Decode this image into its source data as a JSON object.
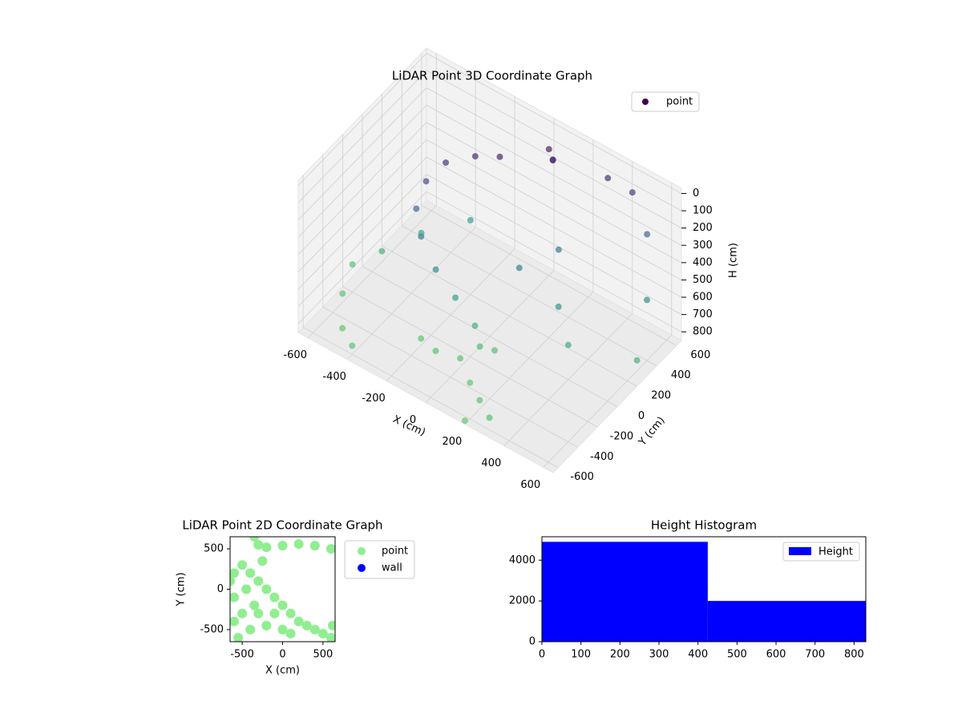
{
  "chart_data": [
    {
      "type": "scatter3d",
      "title": "LiDAR Point 3D Coordinate Graph",
      "xlabel": "X (cm)",
      "ylabel": "Y (cm)",
      "zlabel": "H (cm)",
      "xlim": [
        -650,
        650
      ],
      "ylim": [
        -650,
        650
      ],
      "zlim": [
        850,
        -30
      ],
      "xticks": [
        -600,
        -400,
        -200,
        0,
        200,
        400,
        600
      ],
      "yticks": [
        -600,
        -400,
        -200,
        0,
        200,
        400,
        600
      ],
      "zticks": [
        0,
        100,
        200,
        300,
        400,
        500,
        600,
        700,
        800
      ],
      "colormap": "viridis",
      "legend_loc": "upper right",
      "series": [
        {
          "name": "point",
          "color": "#440154",
          "x": [
            -100,
            -200,
            -300,
            -350,
            -350,
            -300,
            -200,
            -100,
            0,
            100,
            50,
            80,
            60,
            300,
            400,
            500,
            600,
            650,
            0,
            100,
            -100,
            200,
            300,
            -200,
            50,
            -600,
            -500,
            -650,
            -400,
            200,
            -550,
            -450,
            -300,
            200,
            300,
            400,
            100
          ],
          "y": [
            300,
            250,
            150,
            50,
            -50,
            -100,
            -150,
            -150,
            -150,
            -150,
            500,
            480,
            520,
            600,
            650,
            600,
            400,
            200,
            -300,
            -400,
            -350,
            -500,
            -600,
            -300,
            -200,
            -300,
            -500,
            -100,
            -600,
            -650,
            0,
            200,
            400,
            300,
            100,
            0,
            100
          ],
          "z": [
            50,
            80,
            120,
            200,
            300,
            400,
            500,
            600,
            700,
            780,
            30,
            60,
            100,
            100,
            150,
            300,
            500,
            700,
            800,
            820,
            790,
            800,
            780,
            810,
            760,
            800,
            820,
            780,
            800,
            830,
            700,
            650,
            600,
            400,
            550,
            650,
            450
          ]
        }
      ]
    },
    {
      "type": "scatter",
      "title": "LiDAR Point 2D Coordinate Graph",
      "xlabel": "X (cm)",
      "ylabel": "Y (cm)",
      "xlim": [
        -650,
        650
      ],
      "ylim": [
        -650,
        650
      ],
      "xticks": [
        -500,
        0,
        500
      ],
      "yticks": [
        -500,
        0,
        500
      ],
      "legend_loc": "outside right",
      "series": [
        {
          "name": "point",
          "color": "#90ee90",
          "x": [
            -350,
            -300,
            -200,
            0,
            200,
            400,
            600,
            -600,
            -650,
            -500,
            -400,
            -300,
            -200,
            -100,
            0,
            100,
            200,
            300,
            400,
            500,
            600,
            -600,
            -500,
            -600,
            -550,
            -400,
            -300,
            -200,
            0,
            -100,
            100,
            620,
            -450,
            -350,
            -250
          ],
          "y": [
            650,
            550,
            520,
            540,
            560,
            540,
            500,
            200,
            100,
            300,
            200,
            100,
            0,
            -100,
            -200,
            -300,
            -400,
            -450,
            -500,
            -550,
            -600,
            -100,
            -300,
            -400,
            -600,
            -500,
            -300,
            -450,
            -500,
            -300,
            -550,
            -450,
            0,
            -200,
            350
          ]
        },
        {
          "name": "wall",
          "color": "#0000ff",
          "x": [],
          "y": []
        }
      ]
    },
    {
      "type": "histogram",
      "title": "Height Histogram",
      "name": "Height",
      "color": "#0000ff",
      "bins": [
        0,
        425,
        830
      ],
      "counts": [
        4900,
        2000
      ],
      "xlim": [
        0,
        830
      ],
      "ylim": [
        0,
        5150
      ],
      "xticks": [
        0,
        100,
        200,
        300,
        400,
        500,
        600,
        700,
        800
      ],
      "yticks": [
        0,
        2000,
        4000
      ],
      "legend_loc": "upper right"
    }
  ]
}
